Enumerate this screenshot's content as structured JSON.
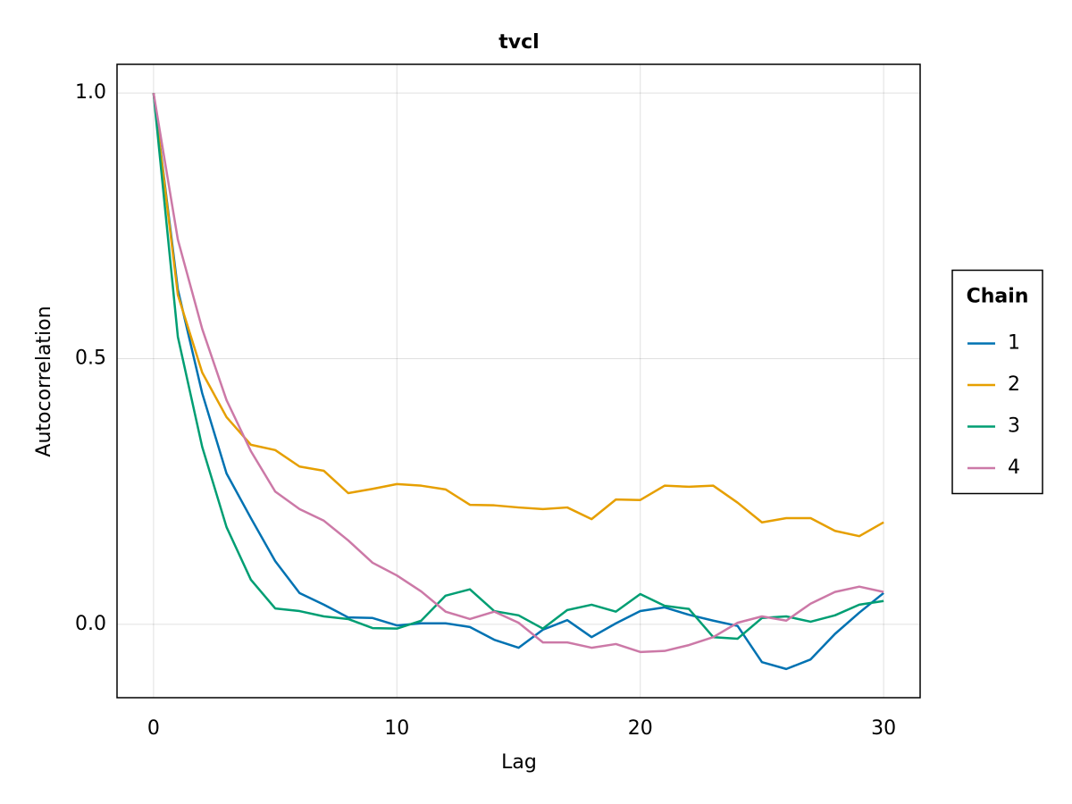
{
  "chart_data": {
    "type": "line",
    "title": "tvcl",
    "xlabel": "Lag",
    "ylabel": "Autocorrelation",
    "x": [
      0,
      1,
      2,
      3,
      4,
      5,
      6,
      7,
      8,
      9,
      10,
      11,
      12,
      13,
      14,
      15,
      16,
      17,
      18,
      19,
      20,
      21,
      22,
      23,
      24,
      25,
      26,
      27,
      28,
      29,
      30
    ],
    "series": [
      {
        "name": "1",
        "color": "#0072b2",
        "values": [
          1.0,
          0.63,
          0.435,
          0.284,
          0.2,
          0.119,
          0.059,
          0.037,
          0.013,
          0.012,
          -0.002,
          0.002,
          0.002,
          -0.005,
          -0.029,
          -0.044,
          -0.01,
          0.008,
          -0.024,
          0.002,
          0.025,
          0.032,
          0.018,
          0.007,
          -0.003,
          -0.071,
          -0.084,
          -0.066,
          -0.018,
          0.022,
          0.059
        ]
      },
      {
        "name": "2",
        "color": "#e69f00",
        "values": [
          1.0,
          0.62,
          0.474,
          0.39,
          0.338,
          0.328,
          0.297,
          0.289,
          0.247,
          0.255,
          0.264,
          0.261,
          0.254,
          0.225,
          0.224,
          0.22,
          0.217,
          0.22,
          0.198,
          0.235,
          0.234,
          0.261,
          0.259,
          0.261,
          0.229,
          0.192,
          0.2,
          0.2,
          0.176,
          0.166,
          0.192
        ]
      },
      {
        "name": "3",
        "color": "#009e73",
        "values": [
          1.0,
          0.541,
          0.334,
          0.183,
          0.084,
          0.03,
          0.025,
          0.015,
          0.01,
          -0.007,
          -0.008,
          0.007,
          0.054,
          0.066,
          0.025,
          0.017,
          -0.008,
          0.027,
          0.037,
          0.024,
          0.057,
          0.035,
          0.029,
          -0.024,
          -0.027,
          0.012,
          0.015,
          0.005,
          0.017,
          0.037,
          0.044
        ]
      },
      {
        "name": "4",
        "color": "#cc79a7",
        "values": [
          1.0,
          0.724,
          0.556,
          0.422,
          0.326,
          0.25,
          0.217,
          0.195,
          0.158,
          0.116,
          0.092,
          0.062,
          0.024,
          0.01,
          0.024,
          0.003,
          -0.034,
          -0.034,
          -0.044,
          -0.037,
          -0.052,
          -0.05,
          -0.039,
          -0.024,
          0.003,
          0.015,
          0.007,
          0.039,
          0.061,
          0.071,
          0.061
        ]
      }
    ],
    "xlim": [
      -1.5,
      31.5
    ],
    "xticks": [
      0,
      10,
      20,
      30
    ],
    "ylim": [
      -0.138,
      1.054
    ],
    "yticks": [
      {
        "value": 0,
        "label": "0.0"
      },
      {
        "value": 0.5,
        "label": "0.5"
      },
      {
        "value": 1,
        "label": "1.0"
      }
    ],
    "grid": true,
    "legend_title": "Chain",
    "legend_position": "right"
  }
}
